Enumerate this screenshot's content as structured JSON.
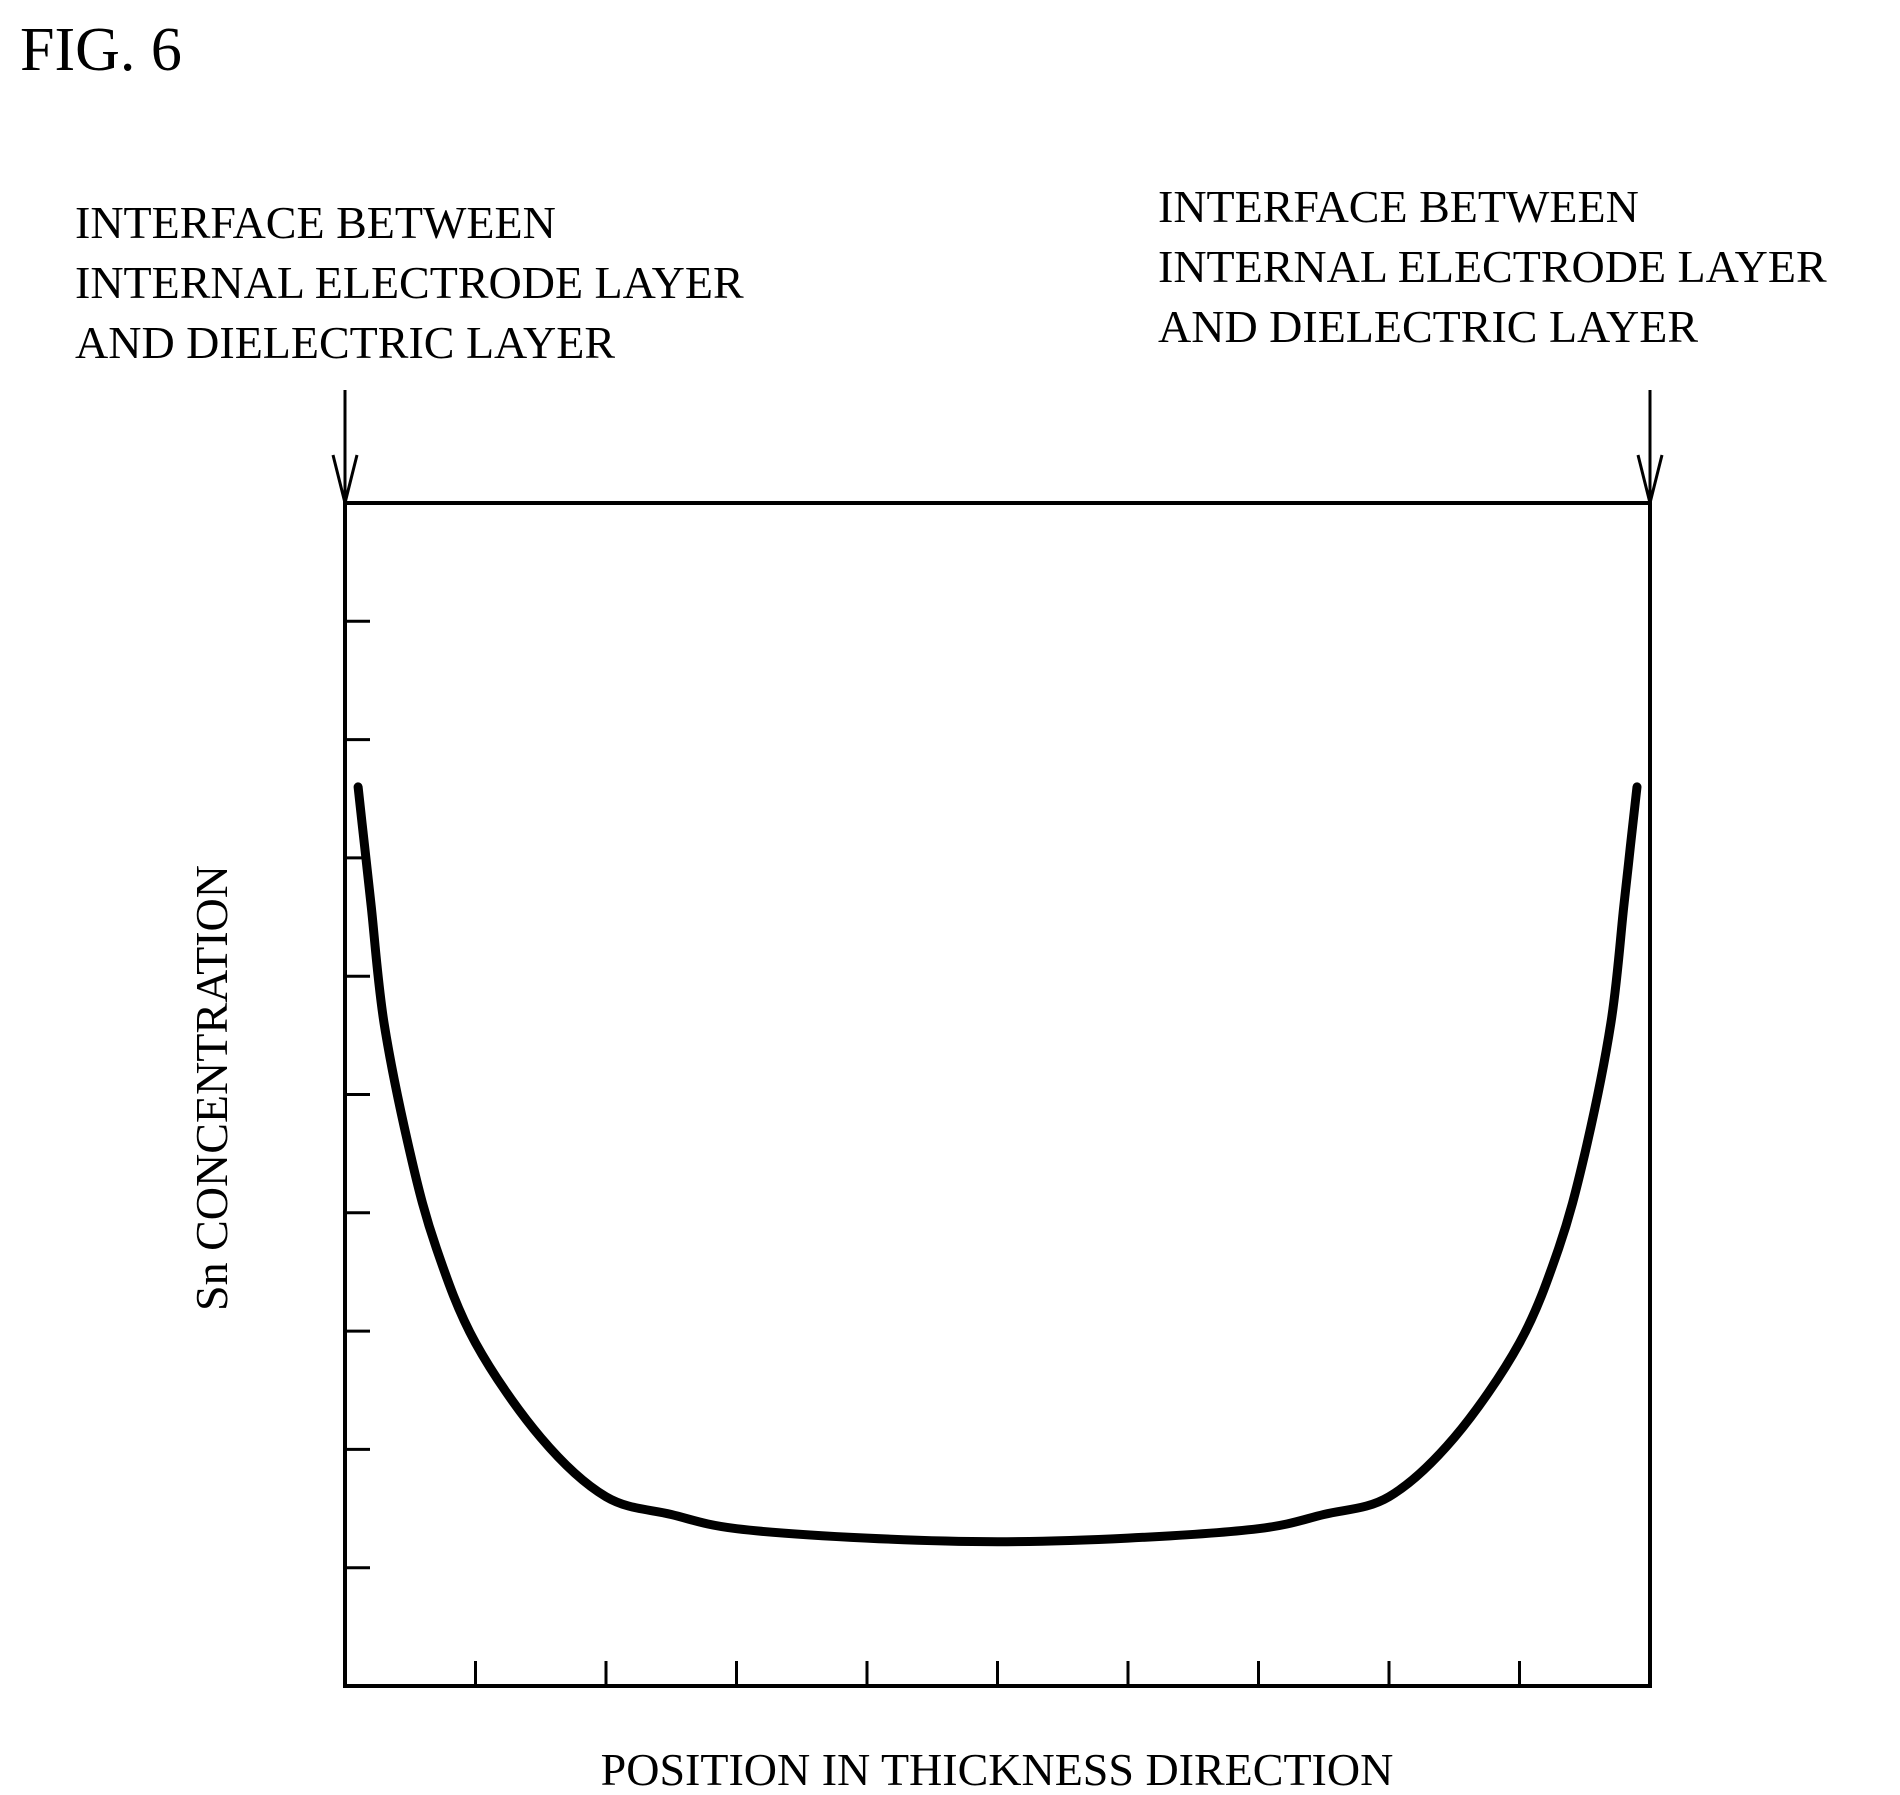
{
  "figure_label": "FIG. 6",
  "chart_data": {
    "type": "line",
    "xlabel": "POSITION IN THICKNESS DIRECTION",
    "ylabel": "Sn CONCENTRATION",
    "xlim": [
      0,
      10
    ],
    "ylim": [
      0,
      10
    ],
    "x_tick_count": 10,
    "y_tick_count": 10,
    "grid": false,
    "line_color": "#000000",
    "annotations": [
      {
        "position": "left boundary",
        "lines": [
          "INTERFACE BETWEEN",
          "INTERNAL ELECTRODE LAYER",
          "AND DIELECTRIC LAYER"
        ]
      },
      {
        "position": "right boundary",
        "lines": [
          "INTERFACE BETWEEN",
          "INTERNAL ELECTRODE LAYER",
          "AND DIELECTRIC LAYER"
        ]
      }
    ],
    "series": [
      {
        "x": [
          0.1,
          0.15,
          0.2,
          0.3,
          0.5,
          0.7,
          1.0,
          1.5,
          2.0,
          2.5,
          3.0,
          4.0,
          5.0,
          6.0,
          7.0,
          7.5,
          8.0,
          8.5,
          9.0,
          9.3,
          9.5,
          9.7,
          9.8,
          9.85,
          9.9
        ],
        "y": [
          7.6,
          7.1,
          6.6,
          5.6,
          4.5,
          3.7,
          2.9,
          2.1,
          1.6,
          1.45,
          1.33,
          1.25,
          1.22,
          1.25,
          1.33,
          1.45,
          1.6,
          2.1,
          2.9,
          3.7,
          4.5,
          5.6,
          6.6,
          7.1,
          7.6
        ]
      }
    ]
  }
}
